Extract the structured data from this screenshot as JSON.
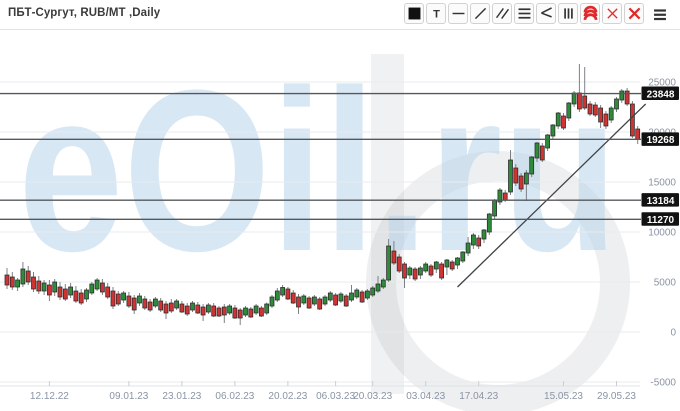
{
  "header": {
    "title": "ПБТ-Сургут, RUB/МТ ,Daily",
    "toolbar": {
      "buttons": [
        {
          "name": "color-swatch-button",
          "icon": "black-square"
        },
        {
          "name": "text-tool-button",
          "icon": "letter-t"
        },
        {
          "name": "hline-tool-button",
          "icon": "horizontal-line"
        },
        {
          "name": "trendline-tool-button",
          "icon": "diagonal-line"
        },
        {
          "name": "channel-tool-button",
          "icon": "double-diagonal"
        },
        {
          "name": "levels-tool-button",
          "icon": "triple-horizontal"
        },
        {
          "name": "fan-tool-button",
          "icon": "angle-lines"
        },
        {
          "name": "vlines-tool-button",
          "icon": "triple-vertical"
        },
        {
          "name": "arcs-tool-button",
          "icon": "red-arcs"
        },
        {
          "name": "delete-tool-button",
          "icon": "red-x-thin"
        },
        {
          "name": "delete-all-tool-button",
          "icon": "red-x-bold"
        }
      ],
      "menu_icon": "hamburger"
    }
  },
  "watermark": {
    "text": "eOil.ru"
  },
  "colors": {
    "background": "#ffffff",
    "grid_line": "#e8ebee",
    "axis_text": "#8a94a4",
    "tick_line": "#c9ced6",
    "baseline": "#dfe3e8",
    "level_line": "#54585c",
    "badge_bg": "#121212",
    "badge_text": "#ffffff",
    "candle_up": "#2e8b3a",
    "candle_down": "#cf3434",
    "candle_border": "#2a2a2a",
    "wick": "#7d8186",
    "trend_line": "#3f4346",
    "watermark_blue": "#b9d4ec",
    "watermark_gray": "#8d9298",
    "icon_dark": "#333333",
    "icon_red": "#e02a2a"
  },
  "chart_data": {
    "type": "candlestick",
    "title": "ПБТ-Сургут, RUB/МТ ,Daily",
    "instrument": "ПБТ-Сургут",
    "units": "RUB/МТ",
    "timeframe": "Daily",
    "y_axis": {
      "side": "right",
      "ticks": [
        25000,
        20000,
        15000,
        10000,
        5000,
        0,
        -5000
      ],
      "range": [
        -6500,
        30000
      ],
      "grid": true
    },
    "x_axis": {
      "labels": [
        {
          "text": "12.12.22",
          "index": 8
        },
        {
          "text": "09.01.23",
          "index": 23
        },
        {
          "text": "23.01.23",
          "index": 33
        },
        {
          "text": "06.02.23",
          "index": 43
        },
        {
          "text": "20.02.23",
          "index": 53
        },
        {
          "text": "06.03.23",
          "index": 62
        },
        {
          "text": "20.03.23",
          "index": 69
        },
        {
          "text": "03.04.23",
          "index": 79
        },
        {
          "text": "17.04.23",
          "index": 89
        },
        {
          "text": "15.05.23",
          "index": 105
        },
        {
          "text": "29.05.23",
          "index": 115
        }
      ]
    },
    "levels": [
      23848,
      19268,
      13184,
      11270
    ],
    "trendline": {
      "from": {
        "index": 85,
        "value": 4500
      },
      "to": {
        "index": 120.5,
        "value": 22800
      }
    },
    "candles_format": [
      "open",
      "high",
      "low",
      "close"
    ],
    "candles": [
      [
        5700,
        6400,
        4300,
        4700
      ],
      [
        5500,
        6000,
        4200,
        4500
      ],
      [
        4500,
        5400,
        4100,
        5200
      ],
      [
        4800,
        7000,
        4500,
        6300
      ],
      [
        6100,
        6600,
        4700,
        5000
      ],
      [
        5500,
        6000,
        4000,
        4300
      ],
      [
        5100,
        5600,
        3800,
        4100
      ],
      [
        4100,
        5200,
        3700,
        4900
      ],
      [
        4700,
        5200,
        3100,
        3700
      ],
      [
        4000,
        5300,
        3600,
        5000
      ],
      [
        4500,
        5000,
        3200,
        3500
      ],
      [
        4300,
        4800,
        3100,
        3300
      ],
      [
        3700,
        4900,
        3400,
        4500
      ],
      [
        4100,
        4600,
        2900,
        3100
      ],
      [
        3900,
        4300,
        2700,
        2900
      ],
      [
        3300,
        4400,
        3000,
        4200
      ],
      [
        3900,
        5000,
        3700,
        4800
      ],
      [
        4300,
        5400,
        4100,
        5200
      ],
      [
        4900,
        5300,
        3700,
        4000
      ],
      [
        4500,
        4900,
        3300,
        3500
      ],
      [
        4100,
        4500,
        2300,
        2600
      ],
      [
        3800,
        4100,
        2600,
        2800
      ],
      [
        3200,
        4100,
        2900,
        3900
      ],
      [
        3600,
        4000,
        2400,
        2600
      ],
      [
        3400,
        3700,
        1800,
        2200
      ],
      [
        2900,
        3900,
        2600,
        3600
      ],
      [
        3300,
        3600,
        2200,
        2400
      ],
      [
        3000,
        3300,
        2000,
        2200
      ],
      [
        2600,
        3500,
        2400,
        3300
      ],
      [
        3100,
        3400,
        2000,
        2200
      ],
      [
        2800,
        3100,
        1300,
        1900
      ],
      [
        2900,
        3300,
        1900,
        2100
      ],
      [
        2400,
        3300,
        2200,
        3100
      ],
      [
        2800,
        3100,
        1900,
        2000
      ],
      [
        2600,
        2900,
        1600,
        1800
      ],
      [
        2200,
        3100,
        2000,
        2900
      ],
      [
        2700,
        3000,
        1800,
        1900
      ],
      [
        2500,
        2800,
        1100,
        1700
      ],
      [
        2000,
        2900,
        1800,
        2700
      ],
      [
        2600,
        2900,
        1500,
        1600
      ],
      [
        2400,
        2600,
        1500,
        1600
      ],
      [
        2500,
        2800,
        900,
        1700
      ],
      [
        1900,
        2800,
        1700,
        2600
      ],
      [
        2400,
        2700,
        1300,
        1400
      ],
      [
        2200,
        2400,
        700,
        1400
      ],
      [
        1700,
        2600,
        1500,
        2400
      ],
      [
        2300,
        2500,
        1400,
        1500
      ],
      [
        1900,
        2800,
        1700,
        2600
      ],
      [
        2400,
        2600,
        1500,
        1600
      ],
      [
        1900,
        2950,
        1700,
        2800
      ],
      [
        2600,
        3700,
        2400,
        3500
      ],
      [
        3200,
        4400,
        3000,
        4100
      ],
      [
        3700,
        4700,
        3500,
        4450
      ],
      [
        4300,
        4500,
        3200,
        3300
      ],
      [
        3900,
        4200,
        2800,
        2900
      ],
      [
        3500,
        3800,
        1800,
        2500
      ],
      [
        2900,
        3800,
        2700,
        3600
      ],
      [
        3400,
        3600,
        2300,
        2400
      ],
      [
        2800,
        3700,
        2600,
        3500
      ],
      [
        3300,
        3500,
        2200,
        2300
      ],
      [
        2800,
        3700,
        2600,
        3500
      ],
      [
        3200,
        4100,
        3000,
        3900
      ],
      [
        3700,
        3900,
        2600,
        2700
      ],
      [
        3100,
        4000,
        2900,
        3800
      ],
      [
        3600,
        3800,
        2500,
        2600
      ],
      [
        3200,
        4700,
        3000,
        3900
      ],
      [
        3500,
        4400,
        3300,
        4200
      ],
      [
        4000,
        4200,
        2900,
        3000
      ],
      [
        3400,
        4300,
        3200,
        4100
      ],
      [
        3700,
        4600,
        3500,
        4400
      ],
      [
        4100,
        5600,
        3900,
        4800
      ],
      [
        4500,
        5400,
        4300,
        5200
      ],
      [
        5200,
        9300,
        5000,
        8600
      ],
      [
        8100,
        9100,
        6700,
        6900
      ],
      [
        7500,
        7800,
        5900,
        6100
      ],
      [
        6800,
        7000,
        4400,
        5400
      ],
      [
        5700,
        6600,
        5300,
        6400
      ],
      [
        6300,
        6500,
        5100,
        5300
      ],
      [
        5700,
        6600,
        5300,
        6400
      ],
      [
        6100,
        7000,
        5900,
        6800
      ],
      [
        6600,
        6800,
        5500,
        5700
      ],
      [
        6300,
        7100,
        5900,
        7000
      ],
      [
        6800,
        7000,
        5200,
        5400
      ],
      [
        6500,
        7300,
        5700,
        7200
      ],
      [
        7000,
        7200,
        6100,
        6300
      ],
      [
        6700,
        7500,
        6300,
        7400
      ],
      [
        7100,
        8100,
        6900,
        8000
      ],
      [
        7900,
        9500,
        7600,
        8900
      ],
      [
        8700,
        9900,
        8300,
        9700
      ],
      [
        9400,
        9700,
        8300,
        8600
      ],
      [
        9300,
        10300,
        8900,
        10200
      ],
      [
        10000,
        11900,
        9700,
        11800
      ],
      [
        11600,
        13300,
        11300,
        13200
      ],
      [
        13000,
        14400,
        12700,
        14200
      ],
      [
        13900,
        14200,
        13000,
        13200
      ],
      [
        14000,
        18200,
        13700,
        17200
      ],
      [
        16400,
        16800,
        14600,
        14900
      ],
      [
        15600,
        15900,
        14000,
        14300
      ],
      [
        14800,
        16200,
        13100,
        15900
      ],
      [
        15800,
        17600,
        15500,
        17500
      ],
      [
        17400,
        19000,
        17000,
        18900
      ],
      [
        18600,
        18900,
        17000,
        17200
      ],
      [
        18400,
        19800,
        18100,
        19700
      ],
      [
        19600,
        20800,
        19300,
        20700
      ],
      [
        20600,
        22000,
        20300,
        21900
      ],
      [
        21600,
        21900,
        20200,
        20400
      ],
      [
        21400,
        23000,
        21100,
        22900
      ],
      [
        22800,
        24100,
        22500,
        23900
      ],
      [
        23900,
        26800,
        22000,
        22300
      ],
      [
        23600,
        26500,
        22200,
        22400
      ],
      [
        22800,
        23100,
        21600,
        21800
      ],
      [
        22700,
        23000,
        21500,
        21700
      ],
      [
        22400,
        22700,
        20400,
        21000
      ],
      [
        21800,
        22100,
        20300,
        20600
      ],
      [
        21200,
        22600,
        20900,
        22400
      ],
      [
        22300,
        23500,
        22000,
        23300
      ],
      [
        23200,
        24300,
        22900,
        24100
      ],
      [
        24100,
        24400,
        22600,
        22800
      ],
      [
        22800,
        23100,
        19400,
        19600
      ],
      [
        20300,
        20600,
        18800,
        19268
      ]
    ]
  }
}
